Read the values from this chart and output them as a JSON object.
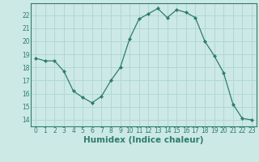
{
  "x": [
    0,
    1,
    2,
    3,
    4,
    5,
    6,
    7,
    8,
    9,
    10,
    11,
    12,
    13,
    14,
    15,
    16,
    17,
    18,
    19,
    20,
    21,
    22,
    23
  ],
  "y": [
    18.7,
    18.5,
    18.5,
    17.7,
    16.2,
    15.7,
    15.3,
    15.8,
    17.0,
    18.0,
    20.2,
    21.7,
    22.1,
    22.5,
    21.8,
    22.4,
    22.2,
    21.8,
    20.0,
    18.9,
    17.6,
    15.2,
    14.1,
    14.0
  ],
  "line_color": "#2e7d6e",
  "marker": "D",
  "marker_size": 2.0,
  "bg_color": "#cce9e5",
  "grid_color": "#b0d8d3",
  "xlabel": "Humidex (Indice chaleur)",
  "ylabel": "",
  "xlim": [
    -0.5,
    23.5
  ],
  "ylim": [
    13.5,
    22.9
  ],
  "yticks": [
    14,
    15,
    16,
    17,
    18,
    19,
    20,
    21,
    22
  ],
  "xticks": [
    0,
    1,
    2,
    3,
    4,
    5,
    6,
    7,
    8,
    9,
    10,
    11,
    12,
    13,
    14,
    15,
    16,
    17,
    18,
    19,
    20,
    21,
    22,
    23
  ],
  "tick_fontsize": 5.5,
  "xlabel_fontsize": 7.5,
  "tick_color": "#2e7d6e",
  "axis_color": "#2e7d6e",
  "linewidth": 0.9
}
